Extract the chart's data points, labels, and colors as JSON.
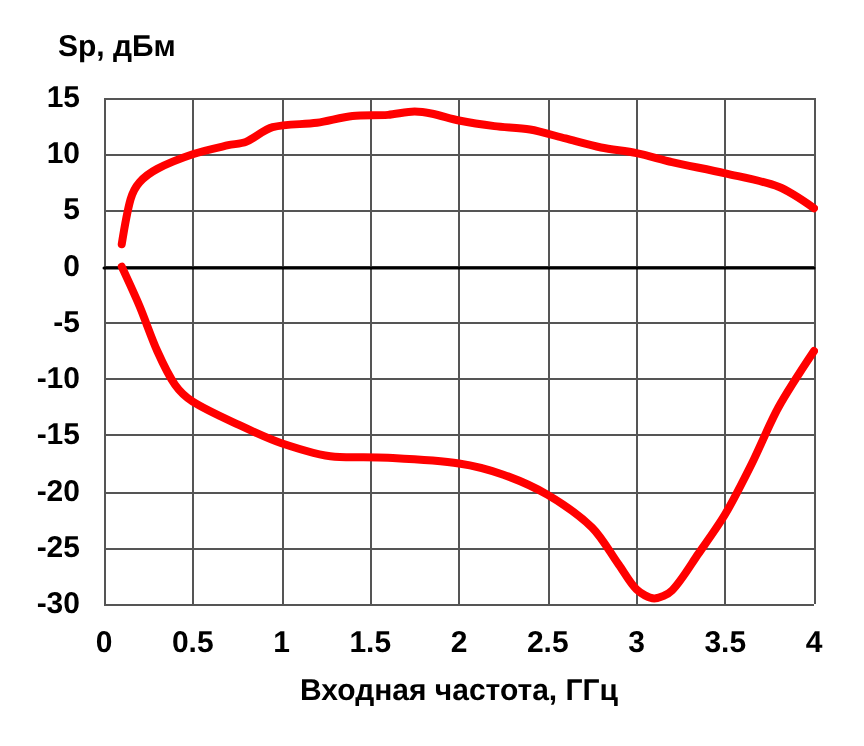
{
  "chart_data": {
    "type": "line",
    "ylabel": "Sp, дБм",
    "xlabel": "Входная частота, ГГц",
    "xlim": [
      0,
      4
    ],
    "xticks": [
      0,
      0.5,
      1,
      1.5,
      2,
      2.5,
      3,
      3.5,
      4
    ],
    "ylim": [
      -30,
      15
    ],
    "yticks": [
      -30,
      -25,
      -20,
      -15,
      -10,
      -5,
      0,
      5,
      10,
      15
    ],
    "grid": true,
    "marker": "none",
    "line_style": "solid",
    "series": [
      {
        "color": "#ff0000",
        "x": [
          0.1,
          0.15,
          0.2,
          0.3,
          0.5,
          0.7,
          0.8,
          0.95,
          1.2,
          1.4,
          1.6,
          1.75,
          1.85,
          2,
          2.2,
          2.4,
          2.6,
          2.8,
          3,
          3.2,
          3.5,
          3.8,
          4
        ],
        "values": [
          2,
          6,
          7.5,
          8.7,
          10,
          10.8,
          11.1,
          12.4,
          12.8,
          13.4,
          13.5,
          13.8,
          13.6,
          13,
          12.5,
          12.2,
          11.4,
          10.6,
          10.1,
          9.3,
          8.3,
          7.1,
          5.2
        ]
      },
      {
        "color": "#ff0000",
        "x": [
          0.1,
          0.2,
          0.3,
          0.4,
          0.5,
          0.75,
          1,
          1.3,
          1.6,
          2,
          2.25,
          2.5,
          2.75,
          2.9,
          3,
          3.1,
          3.2,
          3.35,
          3.5,
          3.65,
          3.8,
          4
        ],
        "values": [
          0,
          -3.5,
          -7.5,
          -10.5,
          -12,
          -14,
          -15.7,
          -16.9,
          -17,
          -17.5,
          -18.5,
          -20.3,
          -23.2,
          -26.5,
          -28.7,
          -29.5,
          -28.8,
          -25.5,
          -22,
          -17.5,
          -12.5,
          -7.5
        ]
      }
    ]
  }
}
